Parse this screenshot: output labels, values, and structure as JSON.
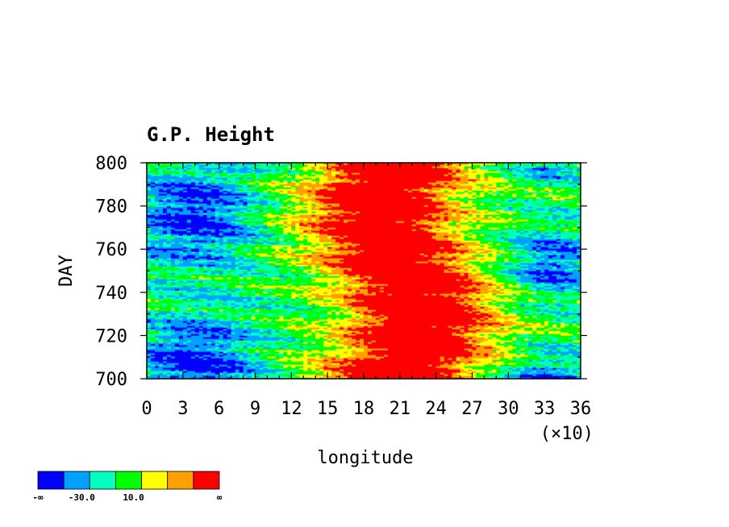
{
  "chart_data": {
    "type": "heatmap",
    "title": "G.P. Height",
    "xlabel": "longitude",
    "ylabel": "DAY",
    "x_multiplier": "(×10)",
    "xlim": [
      0,
      36
    ],
    "ylim": [
      700,
      800
    ],
    "x_ticks": [
      "0",
      "3",
      "6",
      "9",
      "12",
      "15",
      "18",
      "21",
      "24",
      "27",
      "30",
      "33",
      "36"
    ],
    "y_ticks": [
      "700",
      "720",
      "740",
      "760",
      "780",
      "800"
    ],
    "colorbar": {
      "colors": [
        "#0000ff",
        "#00a0ff",
        "#00ffbf",
        "#00ff00",
        "#ffff00",
        "#ffa000",
        "#ff0000"
      ],
      "labels": [
        "-∞",
        "-30.0",
        "10.0",
        "∞"
      ]
    },
    "pattern_notes": "Longitude-time contour: low (blue) values near longitude 0-90 and 300-360, high (red) values near longitude 150-270; band of highs drifts eastward with time."
  }
}
